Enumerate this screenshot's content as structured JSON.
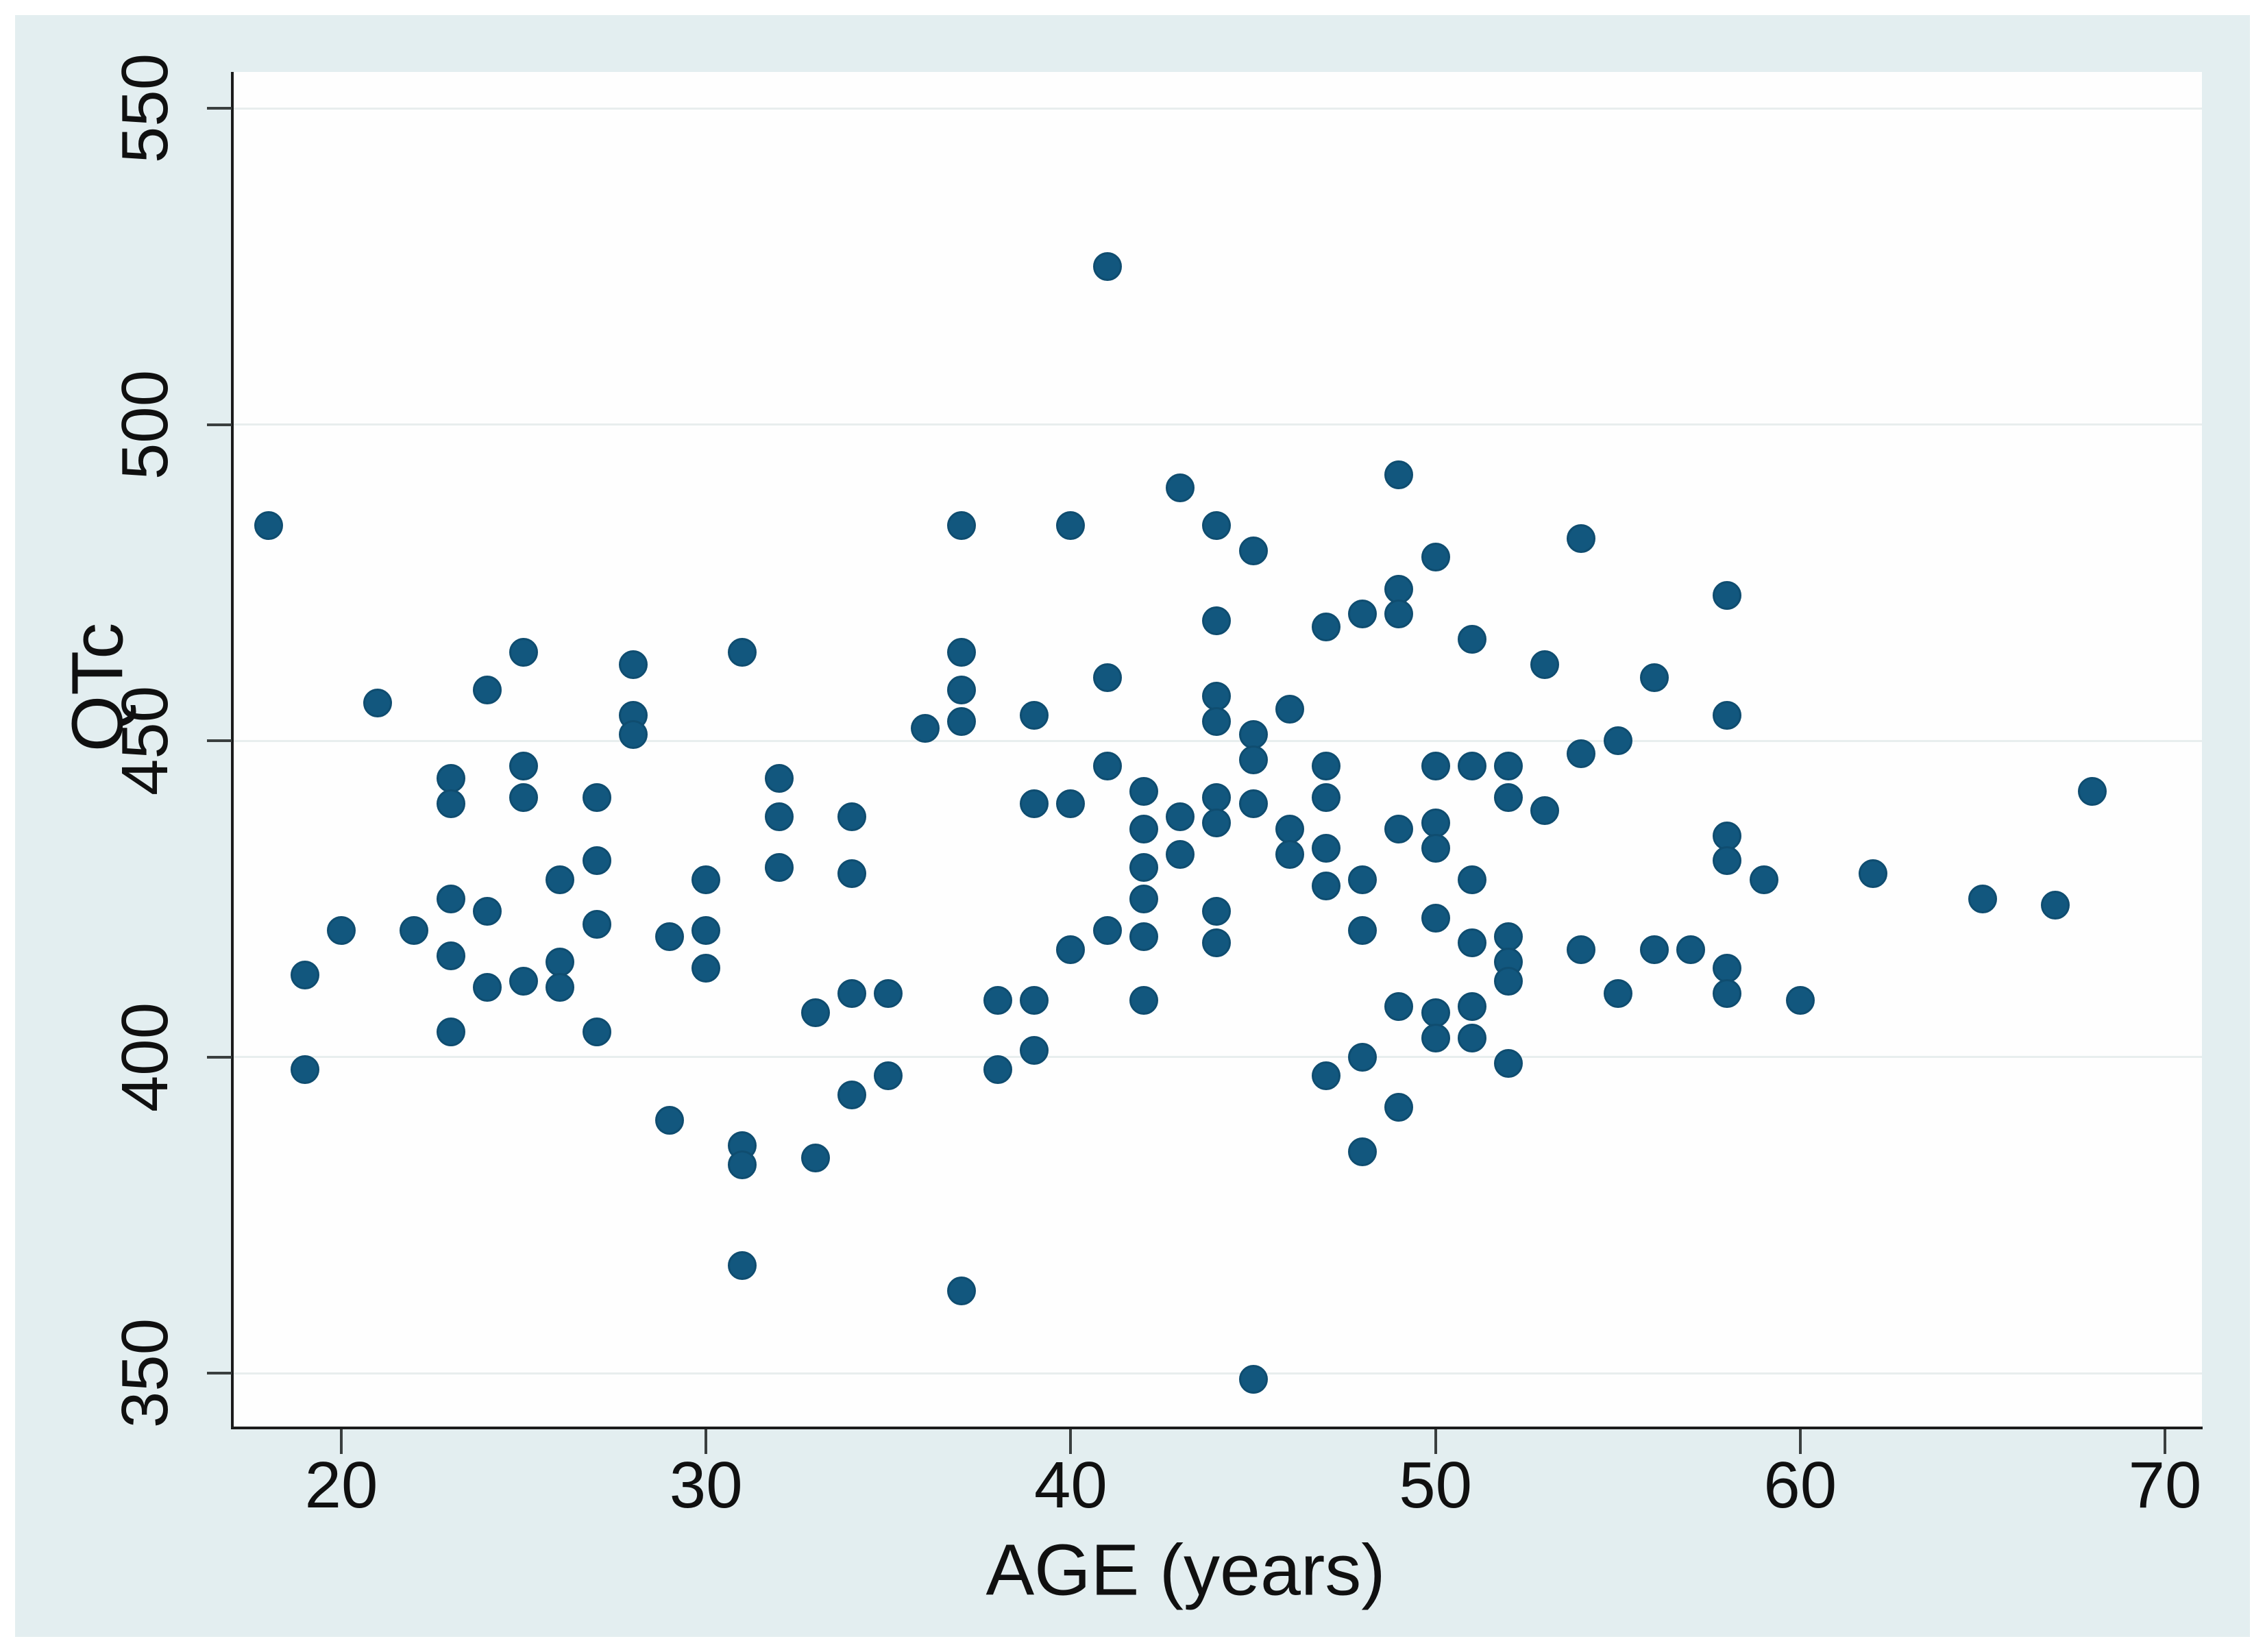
{
  "chart_data": {
    "type": "scatter",
    "title": "",
    "xlabel": "AGE (years)",
    "ylabel": "QTc",
    "x_ticks": [
      20,
      30,
      40,
      50,
      60,
      70
    ],
    "y_ticks": [
      350,
      400,
      450,
      500,
      550
    ],
    "xlim": [
      17.0,
      71.0
    ],
    "ylim": [
      341.5,
      555.7
    ],
    "grid": "horizontal-only",
    "legend_position": "none",
    "marker": "filled-circle",
    "points": [
      [
        18,
        484
      ],
      [
        19,
        413
      ],
      [
        19,
        398
      ],
      [
        20,
        420
      ],
      [
        21,
        456
      ],
      [
        22,
        420
      ],
      [
        23,
        444
      ],
      [
        23,
        440
      ],
      [
        23,
        425
      ],
      [
        23,
        416
      ],
      [
        23,
        404
      ],
      [
        24,
        458
      ],
      [
        24,
        423
      ],
      [
        24,
        411
      ],
      [
        25,
        464
      ],
      [
        25,
        446
      ],
      [
        25,
        441
      ],
      [
        25,
        412
      ],
      [
        26,
        428
      ],
      [
        26,
        415
      ],
      [
        26,
        411
      ],
      [
        27,
        441
      ],
      [
        27,
        431
      ],
      [
        27,
        421
      ],
      [
        27,
        404
      ],
      [
        28,
        462
      ],
      [
        28,
        454
      ],
      [
        28,
        451
      ],
      [
        29,
        419
      ],
      [
        29,
        390
      ],
      [
        30,
        428
      ],
      [
        30,
        420
      ],
      [
        30,
        414
      ],
      [
        31,
        464
      ],
      [
        31,
        386
      ],
      [
        31,
        383
      ],
      [
        31,
        367
      ],
      [
        32,
        444
      ],
      [
        32,
        438
      ],
      [
        32,
        430
      ],
      [
        33,
        407
      ],
      [
        33,
        384
      ],
      [
        34,
        438
      ],
      [
        34,
        429
      ],
      [
        34,
        410
      ],
      [
        34,
        394
      ],
      [
        35,
        410
      ],
      [
        35,
        397
      ],
      [
        36,
        452
      ],
      [
        37,
        484
      ],
      [
        37,
        464
      ],
      [
        37,
        458
      ],
      [
        37,
        453
      ],
      [
        37,
        363
      ],
      [
        38,
        409
      ],
      [
        38,
        398
      ],
      [
        39,
        454
      ],
      [
        39,
        440
      ],
      [
        39,
        409
      ],
      [
        39,
        401
      ],
      [
        40,
        484
      ],
      [
        40,
        440
      ],
      [
        40,
        417
      ],
      [
        41,
        525
      ],
      [
        41,
        460
      ],
      [
        41,
        446
      ],
      [
        41,
        420
      ],
      [
        42,
        442
      ],
      [
        42,
        436
      ],
      [
        42,
        430
      ],
      [
        42,
        425
      ],
      [
        42,
        419
      ],
      [
        42,
        409
      ],
      [
        43,
        490
      ],
      [
        43,
        438
      ],
      [
        43,
        432
      ],
      [
        44,
        484
      ],
      [
        44,
        469
      ],
      [
        44,
        457
      ],
      [
        44,
        453
      ],
      [
        44,
        441
      ],
      [
        44,
        437
      ],
      [
        44,
        423
      ],
      [
        44,
        418
      ],
      [
        45,
        480
      ],
      [
        45,
        451
      ],
      [
        45,
        447
      ],
      [
        45,
        440
      ],
      [
        45,
        349
      ],
      [
        46,
        455
      ],
      [
        46,
        436
      ],
      [
        46,
        432
      ],
      [
        47,
        468
      ],
      [
        47,
        446
      ],
      [
        47,
        441
      ],
      [
        47,
        433
      ],
      [
        47,
        427
      ],
      [
        47,
        397
      ],
      [
        48,
        470
      ],
      [
        48,
        428
      ],
      [
        48,
        420
      ],
      [
        48,
        400
      ],
      [
        48,
        385
      ],
      [
        49,
        492
      ],
      [
        49,
        474
      ],
      [
        49,
        470
      ],
      [
        49,
        436
      ],
      [
        49,
        408
      ],
      [
        49,
        392
      ],
      [
        50,
        479
      ],
      [
        50,
        446
      ],
      [
        50,
        437
      ],
      [
        50,
        433
      ],
      [
        50,
        422
      ],
      [
        50,
        407
      ],
      [
        50,
        403
      ],
      [
        51,
        466
      ],
      [
        51,
        446
      ],
      [
        51,
        428
      ],
      [
        51,
        418
      ],
      [
        51,
        408
      ],
      [
        51,
        403
      ],
      [
        52,
        446
      ],
      [
        52,
        441
      ],
      [
        52,
        419
      ],
      [
        52,
        415
      ],
      [
        52,
        412
      ],
      [
        52,
        399
      ],
      [
        53,
        462
      ],
      [
        53,
        439
      ],
      [
        54,
        482
      ],
      [
        54,
        448
      ],
      [
        54,
        417
      ],
      [
        55,
        450
      ],
      [
        55,
        410
      ],
      [
        56,
        460
      ],
      [
        56,
        417
      ],
      [
        57,
        417
      ],
      [
        58,
        473
      ],
      [
        58,
        454
      ],
      [
        58,
        435
      ],
      [
        58,
        431
      ],
      [
        58,
        414
      ],
      [
        58,
        410
      ],
      [
        59,
        428
      ],
      [
        60,
        409
      ],
      [
        62,
        429
      ],
      [
        65,
        425
      ],
      [
        67,
        424
      ],
      [
        68,
        442
      ]
    ],
    "colors": {
      "dot": "#12577e",
      "dot_edge": "#0f4d70",
      "panel_background": "#e3eef0",
      "plot_background": "#fefefe",
      "gridline": "#e8eeee",
      "axis": "#1c1c1c",
      "text": "#101010"
    }
  }
}
